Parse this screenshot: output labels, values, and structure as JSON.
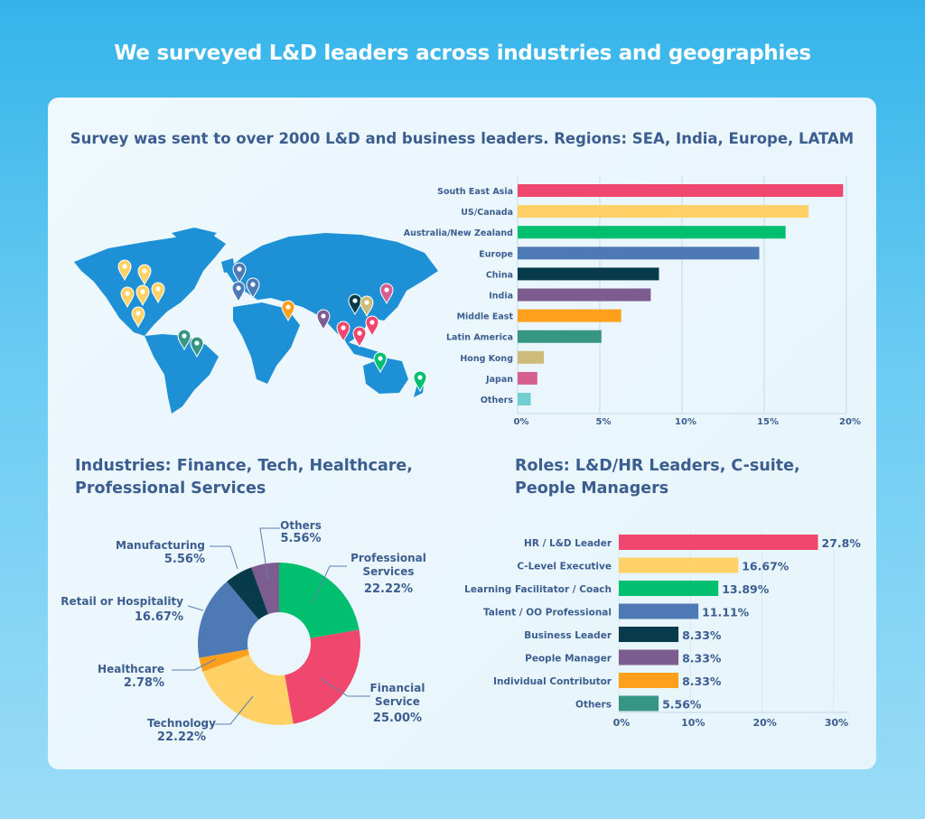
{
  "header": {
    "title": "We surveyed L&D leaders across industries and geographies"
  },
  "survey": {
    "subtitle": "Survey was sent to over 2000 L&D and business leaders. Regions: SEA, India, Europe, LATAM"
  },
  "industries": {
    "heading_line1": "Industries: Finance, Tech, Healthcare,",
    "heading_line2": "Professional Services"
  },
  "roles": {
    "heading_line1": "Roles: L&D/HR Leaders, C-suite,",
    "heading_line2": "People Managers"
  },
  "map": {
    "icon": "world-map-with-location-pins",
    "land_color": "#1e90d6"
  },
  "chart_data": [
    {
      "type": "bar",
      "orientation": "horizontal",
      "categories": [
        "South East Asia",
        "US/Canada",
        "Australia/New Zealand",
        "Europe",
        "China",
        "India",
        "Middle East",
        "Latin America",
        "Hong Kong",
        "Japan",
        "Others"
      ],
      "values": [
        19.8,
        17.7,
        16.3,
        14.7,
        8.6,
        8.1,
        6.3,
        5.1,
        1.6,
        1.2,
        0.8
      ],
      "colors": [
        "#f0476f",
        "#ffd166",
        "#00bf6f",
        "#4d7ab5",
        "#073b4c",
        "#7d5c8f",
        "#ff9f1c",
        "#379683",
        "#cdbb79",
        "#d65f8f",
        "#72cfd1"
      ],
      "xlim": [
        0,
        20
      ],
      "xticks": [
        "0%",
        "5%",
        "10%",
        "15%",
        "20%"
      ],
      "grid": true
    },
    {
      "type": "pie",
      "donut": true,
      "categories": [
        "Professional Services",
        "Financial Service",
        "Technology",
        "Healthcare",
        "Retail or Hospitality",
        "Manufacturing",
        "Others"
      ],
      "values": [
        22.22,
        25.0,
        22.22,
        2.78,
        16.67,
        5.56,
        5.56
      ],
      "labels": [
        "22.22%",
        "25.00%",
        "22.22%",
        "2.78%",
        "16.67%",
        "5.56%",
        "5.56%"
      ],
      "colors": [
        "#00bf6f",
        "#f0476f",
        "#ffd166",
        "#ff9f1c",
        "#4d7ab5",
        "#073b4c",
        "#7d5c8f"
      ]
    },
    {
      "type": "bar",
      "orientation": "horizontal",
      "categories": [
        "HR / L&D Leader",
        "C-Level Executive",
        "Learning Facilitator / Coach",
        "Talent / OO Professional",
        "Business Leader",
        "People Manager",
        "Individual Contributor",
        "Others"
      ],
      "values": [
        27.8,
        16.67,
        13.89,
        11.11,
        8.33,
        8.33,
        8.33,
        5.56
      ],
      "labels": [
        "27.8%",
        "16.67%",
        "13.89%",
        "11.11%",
        "8.33%",
        "8.33%",
        "8.33%",
        "5.56%"
      ],
      "colors": [
        "#f0476f",
        "#ffd166",
        "#00bf6f",
        "#4d7ab5",
        "#073b4c",
        "#7d5c8f",
        "#ff9f1c",
        "#379683"
      ],
      "xlim": [
        0,
        30
      ],
      "xticks": [
        "0%",
        "10%",
        "20%",
        "30%"
      ],
      "grid": true
    }
  ]
}
